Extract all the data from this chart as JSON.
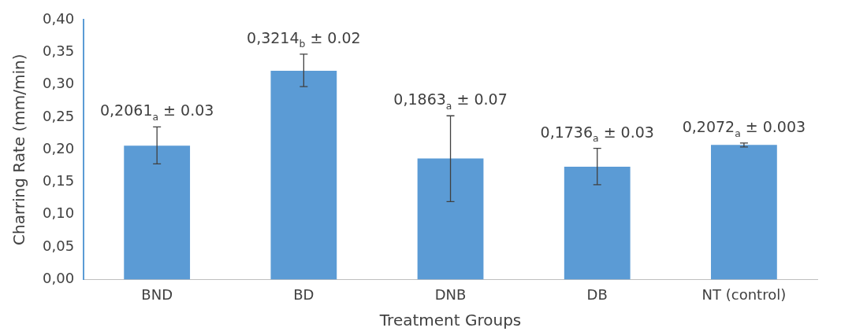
{
  "chart_data": {
    "type": "bar",
    "xlabel": "Treatment Groups",
    "ylabel": "Charring Rate (mm/min)",
    "categories": [
      "BND",
      "BD",
      "DNB",
      "DB",
      "NT (control)"
    ],
    "values": [
      0.2061,
      0.3214,
      0.1863,
      0.1736,
      0.2072
    ],
    "errors": [
      [
        0.178,
        0.235
      ],
      [
        0.297,
        0.347
      ],
      [
        0.12,
        0.252
      ],
      [
        0.146,
        0.202
      ],
      [
        0.204,
        0.21
      ]
    ],
    "value_labels": [
      "0,2061$_{a}$ ± 0.03",
      "0,3214$_{b}$ ± 0.02",
      "0,1863$_{a}$ ± 0.07",
      "0,1736$_{a}$ ± 0.03",
      "0,2072$_{a}$ ± 0.003"
    ],
    "color": "#5b9bd5",
    "ylim": [
      0,
      0.4
    ],
    "yticks": [
      {
        "value": 0,
        "label": "0,00"
      },
      {
        "value": 0.05,
        "label": "0,05"
      },
      {
        "value": 0.1,
        "label": "0,10"
      },
      {
        "value": 0.15,
        "label": "0,15"
      },
      {
        "value": 0.2,
        "label": "0,20"
      },
      {
        "value": 0.25,
        "label": "0,25"
      },
      {
        "value": 0.3,
        "label": "0,30"
      },
      {
        "value": 0.35,
        "label": "0,35"
      },
      {
        "value": 0.4,
        "label": "0,40"
      }
    ],
    "grid": false,
    "legend": false
  }
}
